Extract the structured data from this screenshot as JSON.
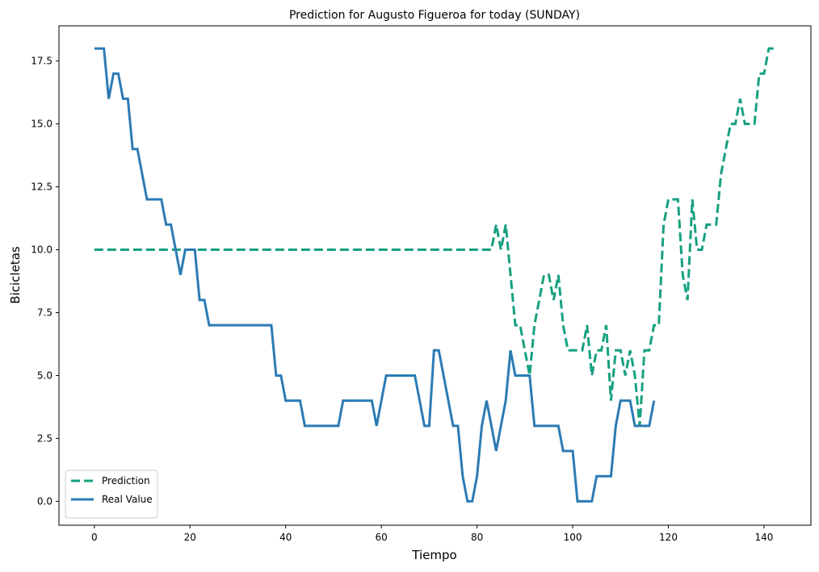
{
  "chart_data": {
    "type": "line",
    "title": "Prediction for Augusto Figueroa for today (SUNDAY)",
    "xlabel": "Tiempo",
    "ylabel": "Bicicletas",
    "x": [
      0,
      1,
      2,
      3,
      4,
      5,
      6,
      7,
      8,
      9,
      10,
      11,
      12,
      13,
      14,
      15,
      16,
      17,
      18,
      19,
      20,
      21,
      22,
      23,
      24,
      25,
      26,
      27,
      28,
      29,
      30,
      31,
      32,
      33,
      34,
      35,
      36,
      37,
      38,
      39,
      40,
      41,
      42,
      43,
      44,
      45,
      46,
      47,
      48,
      49,
      50,
      51,
      52,
      53,
      54,
      55,
      56,
      57,
      58,
      59,
      60,
      61,
      62,
      63,
      64,
      65,
      66,
      67,
      68,
      69,
      70,
      71,
      72,
      73,
      74,
      75,
      76,
      77,
      78,
      79,
      80,
      81,
      82,
      83,
      84,
      85,
      86,
      87,
      88,
      89,
      90,
      91,
      92,
      93,
      94,
      95,
      96,
      97,
      98,
      99,
      100,
      101,
      102,
      103,
      104,
      105,
      106,
      107,
      108,
      109,
      110,
      111,
      112,
      113,
      114,
      115,
      116,
      117,
      118,
      119,
      120,
      121,
      122,
      123,
      124,
      125,
      126,
      127,
      128,
      129,
      130,
      131,
      132,
      133,
      134,
      135,
      136,
      137,
      138,
      139,
      140,
      141,
      142
    ],
    "series": [
      {
        "name": "Prediction",
        "color": "#17a081",
        "linestyle": "dashed",
        "values": [
          10,
          10,
          10,
          10,
          10,
          10,
          10,
          10,
          10,
          10,
          10,
          10,
          10,
          10,
          10,
          10,
          10,
          10,
          10,
          10,
          10,
          10,
          10,
          10,
          10,
          10,
          10,
          10,
          10,
          10,
          10,
          10,
          10,
          10,
          10,
          10,
          10,
          10,
          10,
          10,
          10,
          10,
          10,
          10,
          10,
          10,
          10,
          10,
          10,
          10,
          10,
          10,
          10,
          10,
          10,
          10,
          10,
          10,
          10,
          10,
          10,
          10,
          10,
          10,
          10,
          10,
          10,
          10,
          10,
          10,
          10,
          10,
          10,
          10,
          10,
          10,
          10,
          10,
          10,
          10,
          10,
          10,
          10,
          10,
          11,
          10,
          11,
          9,
          7,
          7,
          6,
          5,
          7,
          8,
          9,
          9,
          8,
          9,
          7,
          6,
          6,
          6,
          6,
          7,
          5,
          6,
          6,
          7,
          4,
          6,
          6,
          5,
          6,
          5,
          3,
          6,
          6,
          7,
          7,
          11,
          12,
          12,
          12,
          9,
          8,
          12,
          10,
          10,
          11,
          11,
          11,
          13,
          14,
          15,
          15,
          16,
          15,
          15,
          15,
          17,
          17,
          18,
          18
        ]
      },
      {
        "name": "Real Value",
        "color": "#2b7bb4",
        "linestyle": "solid",
        "values": [
          18,
          18,
          18,
          16,
          17,
          17,
          16,
          16,
          14,
          14,
          13,
          12,
          12,
          12,
          12,
          11,
          11,
          10,
          9,
          10,
          10,
          10,
          8,
          8,
          7,
          7,
          7,
          7,
          7,
          7,
          7,
          7,
          7,
          7,
          7,
          7,
          7,
          7,
          5,
          5,
          4,
          4,
          4,
          4,
          3,
          3,
          3,
          3,
          3,
          3,
          3,
          3,
          4,
          4,
          4,
          4,
          4,
          4,
          4,
          3,
          4,
          5,
          5,
          5,
          5,
          5,
          5,
          5,
          4,
          3,
          3,
          6,
          6,
          5,
          4,
          3,
          3,
          1,
          0,
          0,
          1,
          3,
          4,
          3,
          2,
          3,
          4,
          6,
          5,
          5,
          5,
          5,
          3,
          3,
          3,
          3,
          3,
          3,
          2,
          2,
          2,
          0,
          0,
          0,
          0,
          1,
          1,
          1,
          1,
          3,
          4,
          4,
          4,
          3,
          3,
          3,
          3,
          4,
          null,
          null,
          null,
          null,
          null,
          null,
          null,
          null,
          null,
          null,
          null,
          null,
          null,
          null,
          null,
          null,
          null,
          null,
          null,
          null,
          null,
          null,
          null,
          null,
          null
        ]
      }
    ],
    "xlim": [
      -7.4,
      149.8
    ],
    "ylim": [
      -0.95,
      18.9
    ],
    "xticks": [
      0,
      20,
      40,
      60,
      80,
      100,
      120,
      140
    ],
    "yticks": [
      {
        "value": 0,
        "label": "0.0"
      },
      {
        "value": 2.5,
        "label": "2.5"
      },
      {
        "value": 5,
        "label": "5.0"
      },
      {
        "value": 7.5,
        "label": "7.5"
      },
      {
        "value": 10,
        "label": "10.0"
      },
      {
        "value": 12.5,
        "label": "12.5"
      },
      {
        "value": 15,
        "label": "15.0"
      },
      {
        "value": 17.5,
        "label": "17.5"
      }
    ],
    "legend": "lower left"
  }
}
